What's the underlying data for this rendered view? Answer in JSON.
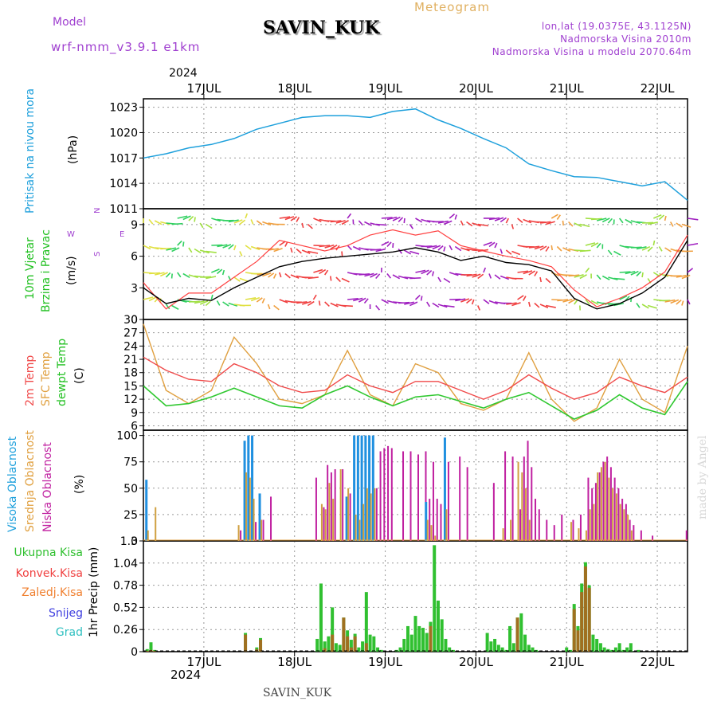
{
  "header": {
    "model_label": "Model",
    "model_name": "wrf-nmm_v3.9.1 e1km",
    "station": "SAVIN_KUK",
    "meteogram": "Meteogram",
    "lonlat": "lon,lat (19.0375E, 43.1125N)",
    "altitude": "Nadmorska Visina 2010m",
    "model_altitude": "Nadmorska Visina u modelu 2070.64m",
    "year": "2024"
  },
  "footer": {
    "station": "SAVIN_KUK",
    "credit": "made by Angel"
  },
  "colors": {
    "pressure": "#1ea0dc",
    "wind_speed": "#000000",
    "gust": "#ff4040",
    "temp2m": "#f04a4a",
    "sfc": "#e0a040",
    "dewpt": "#30c830",
    "high": "#2090e0",
    "mid": "#d0a040",
    "low": "#c020a0",
    "total": "#30c030",
    "conv": "#f04040",
    "frozen": "#f08030",
    "snow": "#4040e0",
    "grad": "#30c0c0",
    "purple": "#a040d0"
  },
  "chart_data": [
    {
      "type": "line",
      "panel": "pressure",
      "ylabel": [
        "Pritisak na nivou mora",
        "(hPa)"
      ],
      "x_ticks": [
        "17JUL",
        "18JUL",
        "19JUL",
        "20JUL",
        "21JUL",
        "22JUL"
      ],
      "ylim": [
        1011,
        1024
      ],
      "yticks": [
        1011,
        1014,
        1017,
        1020,
        1023
      ],
      "grid": true,
      "x_hours": [
        0,
        6,
        12,
        18,
        24,
        30,
        36,
        42,
        48,
        54,
        60,
        66,
        72,
        78,
        84,
        90,
        96,
        102,
        108,
        114,
        120,
        126,
        132,
        138,
        144
      ],
      "series": [
        {
          "values": [
            1017.0,
            1017.5,
            1018.2,
            1018.6,
            1019.3,
            1020.4,
            1021.1,
            1021.8,
            1022.0,
            1022.0,
            1021.8,
            1022.5,
            1022.8,
            1021.5,
            1020.5,
            1019.3,
            1018.2,
            1016.3,
            1015.5,
            1014.8,
            1014.7,
            1014.2,
            1013.7,
            1014.2,
            1012.0
          ]
        }
      ]
    },
    {
      "type": "line",
      "panel": "wind",
      "ylabel": [
        "10m Vjetar",
        "Brzina i Pravac",
        "(m/s)"
      ],
      "compass": [
        "N",
        "E",
        "S",
        "W"
      ],
      "ylim": [
        0,
        10.5
      ],
      "yticks": [
        0,
        3,
        6,
        9
      ],
      "grid": true,
      "x_hours": [
        0,
        6,
        12,
        18,
        24,
        30,
        36,
        42,
        48,
        54,
        60,
        66,
        72,
        78,
        84,
        90,
        96,
        102,
        108,
        114,
        120,
        126,
        132,
        138,
        144
      ],
      "series": [
        {
          "values": [
            3.0,
            1.5,
            2.0,
            1.8,
            3.0,
            4.0,
            5.0,
            5.5,
            5.8,
            6.0,
            6.2,
            6.4,
            6.8,
            6.4,
            5.6,
            6.0,
            5.4,
            5.2,
            4.6,
            2.0,
            1.0,
            1.5,
            2.5,
            4.0,
            7.5
          ]
        },
        {
          "values": [
            3.5,
            1.0,
            2.5,
            2.5,
            4.0,
            5.5,
            7.5,
            7.0,
            6.5,
            7.0,
            8.0,
            8.5,
            8.0,
            8.4,
            7.0,
            6.5,
            6.0,
            5.6,
            5.0,
            2.8,
            1.2,
            2.0,
            3.0,
            4.5,
            8.0
          ]
        }
      ]
    },
    {
      "type": "line",
      "panel": "temperature",
      "ylabel": [
        "2m Temp",
        "SFC Temp",
        "dewpt Temp",
        "(C)"
      ],
      "ylim": [
        5,
        30
      ],
      "yticks": [
        6,
        9,
        12,
        15,
        18,
        21,
        24,
        27,
        30
      ],
      "grid": true,
      "x_hours": [
        0,
        6,
        12,
        18,
        24,
        30,
        36,
        42,
        48,
        54,
        60,
        66,
        72,
        78,
        84,
        90,
        96,
        102,
        108,
        114,
        120,
        126,
        132,
        138,
        144
      ],
      "series": [
        {
          "values": [
            21.5,
            18.5,
            16.5,
            16.0,
            20.0,
            18.0,
            15.0,
            13.5,
            14.0,
            17.5,
            15.0,
            13.5,
            16.0,
            16.0,
            14.0,
            12.0,
            14.0,
            17.5,
            14.5,
            12.0,
            13.5,
            17.0,
            15.0,
            13.5,
            17.0
          ]
        },
        {
          "values": [
            29.0,
            14.0,
            11.0,
            14.0,
            26.0,
            20.0,
            12.0,
            11.0,
            13.0,
            23.0,
            13.0,
            10.5,
            20.0,
            18.0,
            11.0,
            9.5,
            12.0,
            22.5,
            12.0,
            7.0,
            10.0,
            21.0,
            12.0,
            9.0,
            24.0
          ]
        },
        {
          "values": [
            15.0,
            10.5,
            11.0,
            12.5,
            14.5,
            12.5,
            10.5,
            10.0,
            13.0,
            15.0,
            12.5,
            10.5,
            12.5,
            13.0,
            11.5,
            10.0,
            12.0,
            13.5,
            10.5,
            7.5,
            9.5,
            13.0,
            10.0,
            8.5,
            16.0
          ]
        }
      ]
    },
    {
      "type": "bar",
      "panel": "cloud",
      "ylabel": [
        "Visoka Oblacnost",
        "Srednja Oblacnost",
        "Niska Oblacnost",
        "(%)"
      ],
      "ylim": [
        0,
        105
      ],
      "yticks": [
        0,
        25,
        50,
        75,
        100
      ],
      "grid": true,
      "x_hours": [
        1,
        3,
        25,
        27,
        28,
        29,
        31,
        33,
        45,
        47,
        48,
        49,
        50,
        52,
        54,
        56,
        57,
        58,
        59,
        60,
        61,
        62,
        63,
        64,
        65,
        68,
        70,
        72,
        74,
        75,
        76,
        77,
        78,
        80,
        83,
        85,
        92,
        95,
        97,
        99,
        100,
        101,
        102,
        103,
        104,
        106,
        108,
        110,
        113,
        115,
        117,
        118,
        119,
        120,
        121,
        122,
        123,
        124,
        125,
        126,
        127,
        128,
        129,
        131,
        134,
        143
      ],
      "series": [
        {
          "name": "Visoka Oblacnost",
          "values": [
            58,
            0,
            0,
            95,
            100,
            100,
            45,
            0,
            0,
            0,
            0,
            0,
            0,
            0,
            42,
            100,
            100,
            100,
            100,
            100,
            100,
            0,
            0,
            0,
            0,
            0,
            0,
            0,
            0,
            37,
            0,
            0,
            0,
            98,
            0,
            0,
            0,
            0,
            0,
            0,
            0,
            0,
            0,
            0,
            0,
            0,
            0,
            0,
            0,
            0,
            0,
            0,
            0,
            0,
            0,
            0,
            0,
            0,
            0,
            0,
            0,
            0,
            0,
            0,
            0,
            0
          ]
        },
        {
          "name": "Srednja Oblacnost",
          "values": [
            10,
            32,
            15,
            65,
            60,
            40,
            20,
            0,
            0,
            35,
            30,
            55,
            40,
            68,
            50,
            25,
            20,
            35,
            50,
            45,
            50,
            0,
            0,
            0,
            0,
            0,
            0,
            0,
            0,
            20,
            15,
            5,
            0,
            30,
            0,
            0,
            0,
            12,
            20,
            75,
            65,
            50,
            20,
            0,
            0,
            0,
            0,
            0,
            18,
            12,
            10,
            30,
            35,
            65,
            70,
            75,
            60,
            50,
            45,
            35,
            30,
            25,
            10,
            0,
            0,
            0
          ]
        },
        {
          "name": "Niska Oblacnost",
          "values": [
            0,
            0,
            10,
            15,
            17,
            18,
            20,
            42,
            60,
            32,
            72,
            65,
            68,
            68,
            45,
            50,
            35,
            45,
            40,
            55,
            50,
            85,
            88,
            90,
            88,
            85,
            85,
            82,
            85,
            40,
            75,
            40,
            35,
            75,
            80,
            70,
            55,
            85,
            80,
            30,
            80,
            95,
            70,
            40,
            30,
            20,
            15,
            25,
            20,
            25,
            60,
            50,
            55,
            65,
            75,
            80,
            70,
            60,
            50,
            40,
            35,
            20,
            15,
            10,
            5,
            10
          ]
        }
      ]
    },
    {
      "type": "bar",
      "panel": "precipitation",
      "ylabel": [
        "1hr Precip (mm)"
      ],
      "legend": [
        "Ukupna Kisa",
        "Konvek.Kisa",
        "Zaledj.Kisa",
        "Snijeg",
        "Grad"
      ],
      "ylim": [
        0,
        1.3
      ],
      "yticks": [
        0,
        0.26,
        0.52,
        0.78,
        1.04,
        1.3
      ],
      "grid": true,
      "x_ticks": [
        "17JUL",
        "18JUL",
        "19JUL",
        "20JUL",
        "21JUL",
        "22JUL"
      ],
      "year": "2024",
      "x_hours": [
        1,
        2,
        3,
        27,
        30,
        31,
        46,
        47,
        48,
        49,
        50,
        51,
        52,
        53,
        54,
        55,
        56,
        57,
        58,
        59,
        60,
        61,
        62,
        63,
        67,
        68,
        69,
        70,
        71,
        72,
        73,
        74,
        75,
        76,
        77,
        78,
        79,
        80,
        81,
        82,
        91,
        92,
        93,
        94,
        95,
        96,
        97,
        98,
        99,
        100,
        101,
        102,
        103,
        104,
        112,
        113,
        114,
        115,
        116,
        117,
        118,
        119,
        120,
        121,
        122,
        123,
        124,
        125,
        126,
        127,
        128,
        129,
        131
      ],
      "series": [
        {
          "name": "Ukupna Kisa",
          "values": [
            0.03,
            0.11,
            0.02,
            0.22,
            0.05,
            0.16,
            0.15,
            0.8,
            0.12,
            0.18,
            0.52,
            0.1,
            0.08,
            0.4,
            0.25,
            0.14,
            0.21,
            0.05,
            0.12,
            0.7,
            0.2,
            0.18,
            0.05,
            0.02,
            0.02,
            0.05,
            0.15,
            0.3,
            0.2,
            0.42,
            0.3,
            0.28,
            0.22,
            0.35,
            1.25,
            0.6,
            0.38,
            0.15,
            0.05,
            0.02,
            0.22,
            0.12,
            0.15,
            0.08,
            0.05,
            0.02,
            0.3,
            0.1,
            0.4,
            0.45,
            0.2,
            0.08,
            0.05,
            0.02,
            0.05,
            0.02,
            0.56,
            0.3,
            0.8,
            1.05,
            0.78,
            0.2,
            0.15,
            0.1,
            0.05,
            0.03,
            0.02,
            0.05,
            0.1,
            0.02,
            0.05,
            0.1,
            0.02
          ]
        },
        {
          "name": "Konvek.Kisa",
          "values": [
            0.01,
            0.02,
            0.01,
            0.2,
            0.03,
            0.14,
            0.0,
            0.0,
            0.04,
            0.0,
            0.2,
            0.0,
            0.0,
            0.4,
            0.18,
            0.05,
            0.18,
            0.0,
            0.0,
            0.1,
            0.0,
            0.0,
            0.0,
            0.0,
            0.0,
            0.0,
            0.0,
            0.0,
            0.0,
            0.0,
            0.0,
            0.0,
            0.0,
            0.3,
            0.0,
            0.0,
            0.0,
            0.0,
            0.0,
            0.0,
            0.0,
            0.0,
            0.0,
            0.0,
            0.0,
            0.0,
            0.0,
            0.0,
            0.4,
            0.0,
            0.0,
            0.0,
            0.0,
            0.0,
            0.0,
            0.0,
            0.5,
            0.25,
            0.7,
            1.0,
            0.75,
            0.0,
            0.0,
            0.0,
            0.0,
            0.0,
            0.0,
            0.0,
            0.0,
            0.0,
            0.0,
            0.0,
            0.0
          ]
        }
      ]
    }
  ]
}
